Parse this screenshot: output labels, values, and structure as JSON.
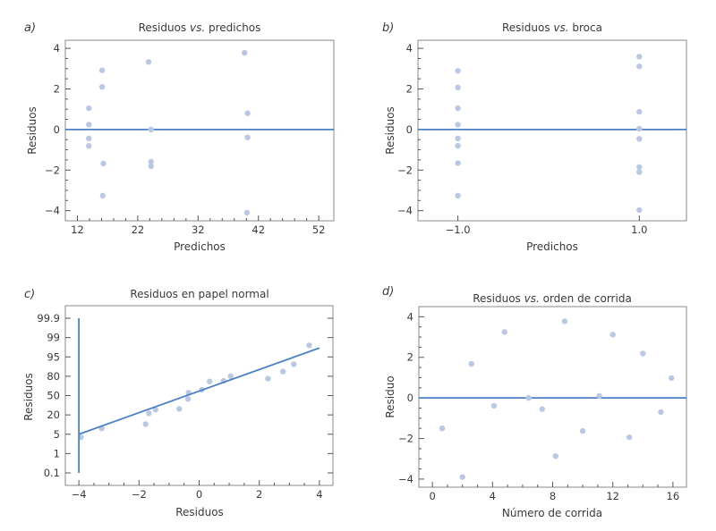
{
  "figure": {
    "point_color": "#b9c8e4",
    "line_color": "#4a80c8"
  },
  "chart_data": [
    {
      "id": "a",
      "type": "scatter",
      "tag": "a)",
      "title": "Residuos vs. predichos",
      "title_parts": [
        "Residuos ",
        "vs.",
        " predichos"
      ],
      "xlabel": "Predichos",
      "ylabel": "Residuos",
      "xlim": [
        10,
        54.5
      ],
      "ylim": [
        -4.5,
        4.4
      ],
      "xticks": [
        12,
        22,
        32,
        42,
        52
      ],
      "xtick_labels": [
        "12",
        "22",
        "32",
        "42",
        "52"
      ],
      "xminor_step": 2,
      "yticks": [
        -4,
        -2,
        0,
        2,
        4
      ],
      "ytick_labels": [
        "−4",
        "−2",
        "0",
        "2",
        "4"
      ],
      "yminor_step": 0.5,
      "reference_line": {
        "y": 0
      },
      "points": [
        [
          13.9,
          1.05
        ],
        [
          13.9,
          0.24
        ],
        [
          13.9,
          -0.44
        ],
        [
          13.9,
          -0.81
        ],
        [
          16.1,
          2.92
        ],
        [
          16.1,
          2.1
        ],
        [
          16.3,
          -1.68
        ],
        [
          16.2,
          -3.26
        ],
        [
          23.8,
          3.33
        ],
        [
          24.2,
          0.0
        ],
        [
          24.2,
          -1.59
        ],
        [
          24.2,
          -1.81
        ],
        [
          39.7,
          3.78
        ],
        [
          40.2,
          0.8
        ],
        [
          40.2,
          -0.39
        ],
        [
          40.1,
          -4.1
        ]
      ]
    },
    {
      "id": "b",
      "type": "scatter",
      "tag": "b)",
      "title": "Residuos vs. broca",
      "title_parts": [
        "Residuos ",
        "vs.",
        " broca"
      ],
      "xlabel": "Predichos",
      "ylabel": "Residuos",
      "xlim": [
        -1.44,
        1.52
      ],
      "ylim": [
        -4.5,
        4.4
      ],
      "xticks": [
        -1.0,
        1.0
      ],
      "xtick_labels": [
        "−1.0",
        "1.0"
      ],
      "xminor_step": null,
      "yticks": [
        -4,
        -2,
        0,
        2,
        4
      ],
      "ytick_labels": [
        "−4",
        "−2",
        "0",
        "2",
        "4"
      ],
      "yminor_step": 0.5,
      "reference_line": {
        "y": 0
      },
      "points": [
        [
          -1.0,
          2.89
        ],
        [
          -1.0,
          2.07
        ],
        [
          -1.0,
          1.05
        ],
        [
          -1.0,
          0.24
        ],
        [
          -1.0,
          -0.44
        ],
        [
          -1.0,
          -0.8
        ],
        [
          -1.0,
          -1.66
        ],
        [
          -1.0,
          -3.26
        ],
        [
          1.0,
          3.59
        ],
        [
          1.0,
          3.11
        ],
        [
          1.0,
          0.87
        ],
        [
          1.0,
          0.04
        ],
        [
          1.0,
          -0.46
        ],
        [
          1.0,
          -1.85
        ],
        [
          1.0,
          -2.1
        ],
        [
          1.0,
          -3.97
        ]
      ]
    },
    {
      "id": "c",
      "type": "scatter",
      "tag": "c)",
      "title": "Residuos en papel normal",
      "title_parts": [
        "Residuos en papel normal",
        "",
        ""
      ],
      "xlabel": "Residuos",
      "ylabel": "Residuos",
      "xlim": [
        -4.45,
        4.45
      ],
      "ylim_probability": [
        0.02,
        99.98
      ],
      "xticks": [
        -4,
        -2,
        0,
        2,
        4
      ],
      "xtick_labels": [
        "−4",
        "−2",
        "0",
        "2",
        "4"
      ],
      "xminor_step": 0.5,
      "yticks": [
        0.1,
        1,
        5,
        20,
        50,
        80,
        95,
        99,
        99.9
      ],
      "ytick_labels": [
        "0.1",
        "1",
        "5",
        "20",
        "50",
        "80",
        "95",
        "99",
        "99.9"
      ],
      "y_scale": "normal-probability",
      "fit_line": {
        "from": [
          -4,
          5
        ],
        "to": [
          4,
          97.5
        ]
      },
      "vertical_line": {
        "x": -4,
        "from": 0.1,
        "to": 99.9
      },
      "points": [
        [
          -3.93,
          4
        ],
        [
          -3.24,
          8
        ],
        [
          -1.78,
          11
        ],
        [
          -1.67,
          22
        ],
        [
          -1.45,
          27
        ],
        [
          -0.66,
          28
        ],
        [
          -0.37,
          44
        ],
        [
          -0.35,
          55
        ],
        [
          0.09,
          60
        ],
        [
          0.35,
          73
        ],
        [
          0.81,
          74
        ],
        [
          1.05,
          80
        ],
        [
          2.29,
          77
        ],
        [
          2.79,
          85
        ],
        [
          3.15,
          91
        ],
        [
          3.66,
          98
        ]
      ]
    },
    {
      "id": "d",
      "type": "scatter",
      "tag": "d)",
      "title": "Residuos vs. orden de corrida",
      "title_parts": [
        "Residuos ",
        "vs.",
        " orden de corrida"
      ],
      "xlabel": "Número de corrida",
      "ylabel": "Residuo",
      "xlim": [
        -0.9,
        16.9
      ],
      "ylim": [
        -4.4,
        4.5
      ],
      "xticks": [
        0,
        4,
        8,
        12,
        16
      ],
      "xtick_labels": [
        "0",
        "4",
        "8",
        "12",
        "16"
      ],
      "xminor_step": 1,
      "yticks": [
        -4,
        -2,
        0,
        2,
        4
      ],
      "ytick_labels": [
        "−4",
        "−2",
        "0",
        "2",
        "4"
      ],
      "yminor_step": 0.5,
      "reference_line": {
        "y": 0
      },
      "points": [
        [
          0.65,
          -1.5
        ],
        [
          2.0,
          -3.9
        ],
        [
          2.6,
          1.68
        ],
        [
          4.1,
          -0.39
        ],
        [
          4.8,
          3.25
        ],
        [
          6.4,
          0.0
        ],
        [
          7.3,
          -0.55
        ],
        [
          8.2,
          -2.87
        ],
        [
          8.8,
          3.78
        ],
        [
          10.0,
          -1.63
        ],
        [
          11.1,
          0.1
        ],
        [
          12.0,
          3.12
        ],
        [
          13.1,
          -1.94
        ],
        [
          14.0,
          2.19
        ],
        [
          15.2,
          -0.7
        ],
        [
          15.9,
          0.98
        ]
      ]
    }
  ]
}
